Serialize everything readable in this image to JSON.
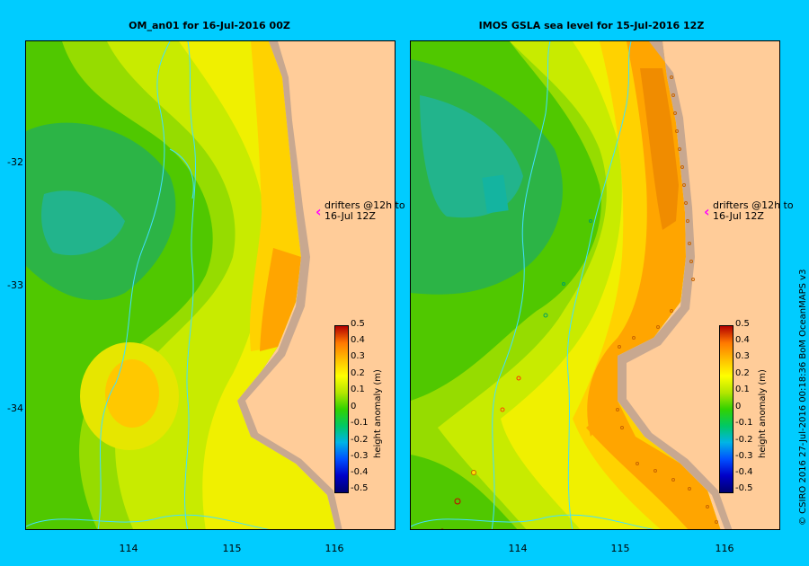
{
  "left_panel": {
    "title": "OM_an01  for 16-Jul-2016 00Z",
    "annotation_line1": "drifters @12h to",
    "annotation_line2": "16-Jul 12Z"
  },
  "right_panel": {
    "title": "IMOS GSLA sea level  for 15-Jul-2016 12Z",
    "annotation_line1": "drifters @12h to",
    "annotation_line2": "16-Jul 12Z"
  },
  "axes": {
    "y_ticks": [
      "-32",
      "-33",
      "-34"
    ],
    "x_ticks": [
      "114",
      "115",
      "116"
    ]
  },
  "colorbar": {
    "label": "height anomaly (m)",
    "ticks": [
      "0.5",
      "0.4",
      "0.3",
      "0.2",
      "0.1",
      "0",
      "-0.1",
      "-0.2",
      "-0.3",
      "-0.4",
      "-0.5"
    ]
  },
  "credit": "© CSIRO 2016   27-Jul-2016 00:18:36 BoM OceanMAPS v3",
  "colors": {
    "background": "#00ccff",
    "land": "#ffcc99",
    "coast": "#c8a890",
    "contour": "#40e0ff",
    "drifter_arrow": "#ff00ff"
  }
}
